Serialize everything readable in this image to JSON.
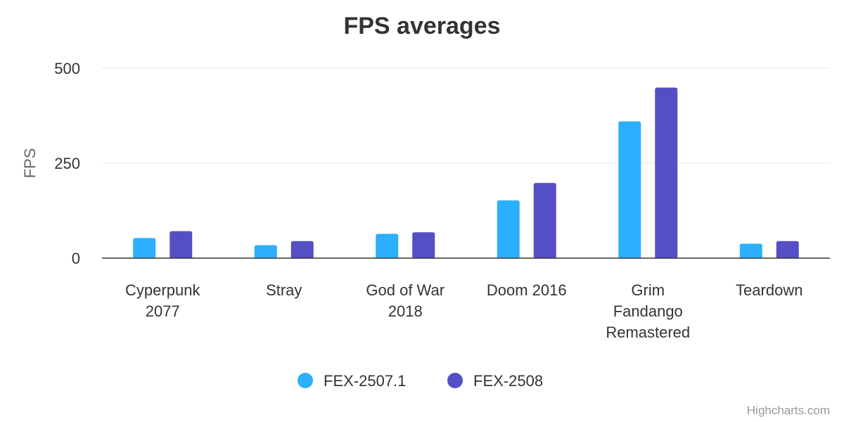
{
  "chart_data": {
    "type": "bar",
    "title": "FPS averages",
    "xlabel": "",
    "ylabel": "FPS",
    "ylim": [
      0,
      500
    ],
    "yticks": [
      0,
      250,
      500
    ],
    "grid": true,
    "legend_placement": "bottom-center",
    "categories": [
      [
        "Cyperpunk",
        "2077"
      ],
      [
        "Stray"
      ],
      [
        "God of War",
        "2018"
      ],
      [
        "Doom 2016"
      ],
      [
        "Grim",
        "Fandango",
        "Remastered"
      ],
      [
        "Teardown"
      ]
    ],
    "series": [
      {
        "name": "FEX-2507.1",
        "color": "#2caffe",
        "values": [
          53,
          34,
          64,
          152,
          360,
          38
        ]
      },
      {
        "name": "FEX-2508",
        "color": "#544fc5",
        "values": [
          71,
          45,
          68,
          198,
          449,
          45
        ]
      }
    ]
  },
  "credits": "Highcharts.com"
}
